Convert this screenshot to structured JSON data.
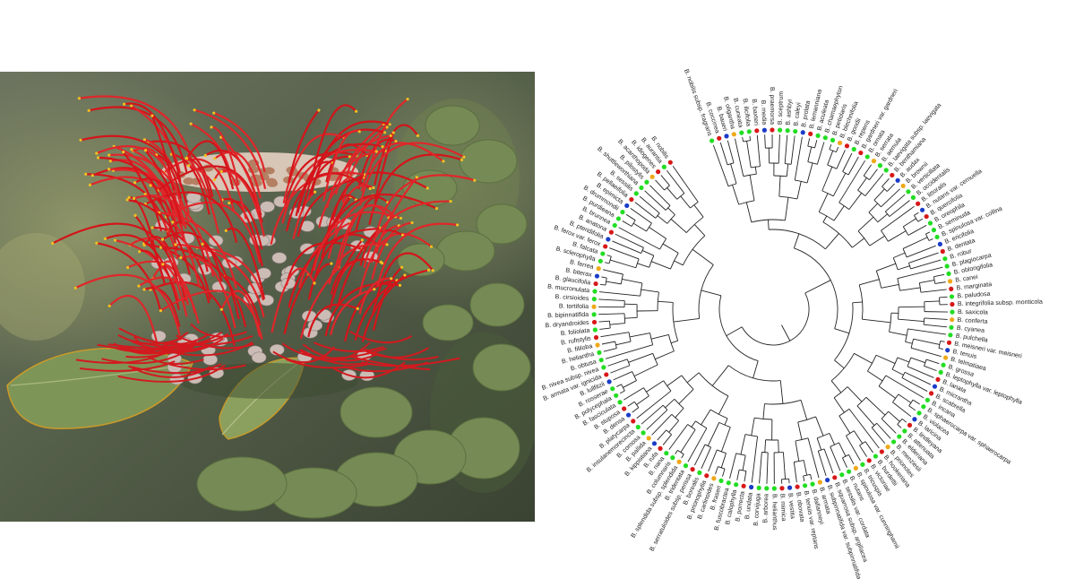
{
  "photo": {
    "subject": "banksia-flower-spike"
  },
  "colors": {
    "green": "#22dd22",
    "red": "#d81818",
    "blue": "#1a3cc8",
    "orange": "#f0a818"
  },
  "tree": {
    "tips": [
      "B. nobilis subsp. fragrans",
      "B. coccinea",
      "B. baueri",
      "B. oligantha",
      "B. cuneata",
      "B. ilicifolia",
      "B. baxteri",
      "B. media",
      "B. praemorsa",
      "B. sceptrum",
      "B. ashbyi",
      "B. caleyi",
      "B. prolata",
      "B. lemanniana",
      "B. aculeata",
      "B. chamaephyton",
      "B. petiolaris",
      "B. blechnifolia",
      "B. goodii",
      "B. repens",
      "B. gardneri var. gardneri",
      "B. ornata",
      "B. serrata",
      "B. aemula",
      "B. laevigata subsp. laevigata",
      "B. benthamiana",
      "B. audax",
      "B. brownii",
      "B. verticillata",
      "B. occidentalis",
      "B. littoralis",
      "B. nutans var. cernuella",
      "B. quercifolia",
      "B. oreophila",
      "B. seminuda",
      "B. spinulosa var. collina",
      "B. ericifolia",
      "B. dentata",
      "B. robur",
      "B. plagiocarpa",
      "B. oblongifolia",
      "B. canei",
      "B. marginata",
      "B. paludosa",
      "B. integrifolia subsp. monticola",
      "B. saxicola",
      "B. conferta",
      "B. cyanea",
      "B. pulchella",
      "B. meisneri var. meisneri",
      "B. tenuis",
      "B. telmatiaea",
      "B. grossa",
      "B. leptophylla var. leptophylla",
      "B. lanata",
      "B. micrantha",
      "B. scabrella",
      "B. incana",
      "B. sphaerocarpa var. sphaerocarpa",
      "B. violacea",
      "B. laricina",
      "B. lindleyana",
      "B. attenuata",
      "B. elderiana",
      "B. menziesii",
      "B. prionotes",
      "B. hookeriana",
      "B. burdettii",
      "B. victoriae",
      "B. tricuspis",
      "B. spinulosa var. cunninghamii",
      "B. nutans",
      "B. sessilis var. cordata",
      "B. squarrosa subsp. argillacea",
      "B. subpinnatifida var. subpinnatifida",
      "B. armata",
      "B. dallanneyi",
      "B. tenuis var. reptans",
      "B. obovata",
      "B. vestita",
      "B. mimica",
      "B. helianthus",
      "B. arborea",
      "B. corvijuga",
      "B. undata",
      "B. porrecta",
      "B. calophylla",
      "B. fuscobractea",
      "B. fraseri",
      "B. carlinoides",
      "B. prionophylla",
      "B. borealis",
      "B. serratuloides subsp. perissa",
      "B. tridentata",
      "B. splendida subsp. splendida",
      "B. columnaris",
      "B. nana",
      "B. rufa",
      "B. kippistiana",
      "B. pallida",
      "B. comosa",
      "B. insulanemorecincta",
      "B. platycarpa",
      "B. densa",
      "B. stuposa",
      "B. fasciculata",
      "B. polycephala",
      "B. rosserae",
      "B. lullfitzii",
      "B. armata var. ignicida",
      "B. nivea subsp. nivea",
      "B. obtusa",
      "B. heliantha",
      "B. fililoba",
      "B. rufistylis",
      "B. foliolata",
      "B. dryandroides",
      "B. bipinnatifida",
      "B. tortifolia",
      "B. cirsioides",
      "B. mucronulata",
      "B. glaucifolia",
      "B. biterax",
      "B. ferrea",
      "B. sclerophylla",
      "B. falcata",
      "B. ferox var. ferox",
      "B. pteridifolia",
      "B. anatona",
      "B. brunnea",
      "B. purdieana",
      "B. drummondii",
      "B. epimicta",
      "B. pellaeifolia",
      "B. sessilis",
      "B. shuttleworthiana",
      "B. pilostylis",
      "B. acanthopoda",
      "B. idiogenes",
      "B. aurantia",
      "B. nobilis"
    ]
  }
}
